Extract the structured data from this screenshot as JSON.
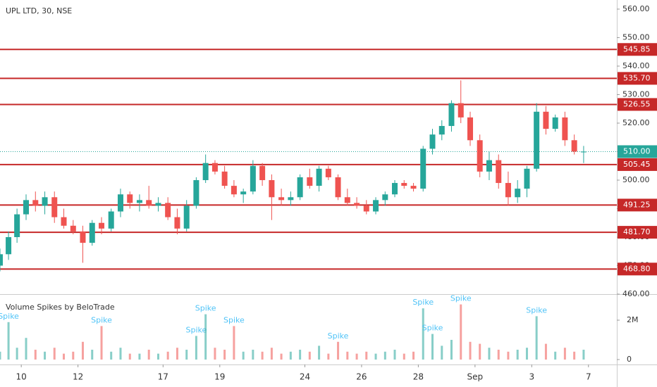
{
  "chart_data": {
    "type": "candlestick",
    "title": "UPL LTD, 30, NSE",
    "up_color": "#26a69a",
    "down_color": "#ef5350",
    "x": [
      -0.75,
      -0.45,
      -0.15,
      0.17,
      0.5,
      0.83,
      1.17,
      1.5,
      1.83,
      2.17,
      2.5,
      2.83,
      3.17,
      3.5,
      3.83,
      4.17,
      4.5,
      4.83,
      5.17,
      5.5,
      5.83,
      6.17,
      6.5,
      6.83,
      7.17,
      7.5,
      7.83,
      8.17,
      8.5,
      8.83,
      9.17,
      9.5,
      9.83,
      10.17,
      10.5,
      10.83,
      11.17,
      11.5,
      11.83,
      12.17,
      12.5,
      12.83,
      13.17,
      13.5,
      13.83,
      14.17,
      14.5,
      14.83,
      15.17,
      15.5,
      15.83,
      16.17,
      16.5,
      16.83,
      17.17,
      17.5,
      17.83,
      18.17,
      18.5,
      18.83,
      19.17,
      19.5,
      19.83
    ],
    "open": [
      470,
      474,
      480,
      488,
      493,
      491,
      494,
      487,
      484,
      482,
      478,
      485,
      483,
      489,
      495,
      492,
      493,
      491,
      492,
      487,
      483,
      491,
      500,
      506,
      503,
      498,
      495,
      496,
      505,
      500,
      494,
      493,
      494,
      501,
      498,
      504,
      501,
      494,
      492,
      491,
      489,
      493,
      495,
      499,
      498,
      497,
      511,
      516,
      519,
      527,
      522,
      514,
      503,
      507,
      499,
      494,
      497,
      504,
      524,
      518,
      522,
      514,
      510
    ],
    "high": [
      476,
      482,
      490,
      495,
      496,
      496,
      496,
      490,
      486,
      484,
      486,
      487,
      490,
      497,
      496,
      495,
      498,
      494,
      494,
      490,
      493,
      501,
      509,
      507,
      505,
      500,
      497,
      507,
      506,
      502,
      497,
      496,
      502,
      504,
      505,
      505,
      502,
      497,
      494,
      493,
      494,
      496,
      500,
      500,
      499,
      512,
      518,
      521,
      528,
      535,
      524,
      516,
      510,
      509,
      503,
      500,
      505,
      527,
      526,
      523,
      524,
      516,
      512
    ],
    "low": [
      468,
      472,
      478,
      486,
      489,
      488,
      485,
      483,
      481,
      471,
      477,
      481,
      482,
      487,
      490,
      489,
      490,
      489,
      486,
      481,
      482,
      490,
      499,
      502,
      497,
      494,
      492,
      495,
      498,
      486,
      491,
      491,
      493,
      497,
      496,
      500,
      493,
      491,
      490,
      488,
      488,
      491,
      494,
      497,
      496,
      496,
      509,
      514,
      517,
      520,
      512,
      501,
      500,
      497,
      491,
      492,
      494,
      503,
      516,
      517,
      512,
      509,
      506
    ],
    "close": [
      474,
      480,
      488,
      493,
      491,
      494,
      487,
      484,
      482,
      478,
      485,
      483,
      489,
      495,
      492,
      493,
      491,
      492,
      487,
      483,
      491,
      500,
      506,
      503,
      498,
      495,
      496,
      505,
      500,
      494,
      493,
      494,
      501,
      498,
      504,
      501,
      494,
      492,
      491,
      489,
      493,
      495,
      499,
      498,
      497,
      511,
      516,
      519,
      527,
      522,
      514,
      503,
      507,
      499,
      494,
      497,
      504,
      524,
      518,
      522,
      514,
      510,
      510
    ],
    "xlim": [
      -0.75,
      21
    ],
    "xticks": [
      {
        "value": 0,
        "label": "10"
      },
      {
        "value": 2,
        "label": "12"
      },
      {
        "value": 5,
        "label": "17"
      },
      {
        "value": 7,
        "label": "19"
      },
      {
        "value": 10,
        "label": "24"
      },
      {
        "value": 12,
        "label": "26"
      },
      {
        "value": 14,
        "label": "28"
      },
      {
        "value": 16,
        "label": "Sep"
      },
      {
        "value": 18,
        "label": "3"
      },
      {
        "value": 20,
        "label": "7"
      }
    ],
    "ylim": [
      460,
      563.2
    ],
    "yticks": [
      {
        "value": 460,
        "label": "460.00"
      },
      {
        "value": 470,
        "label": "470.00"
      },
      {
        "value": 480,
        "label": "480.00"
      },
      {
        "value": 490,
        "label": "490.00"
      },
      {
        "value": 500,
        "label": "500.00"
      },
      {
        "value": 510,
        "label": "510.00"
      },
      {
        "value": 520,
        "label": "520.00"
      },
      {
        "value": 530,
        "label": "530.00"
      },
      {
        "value": 540,
        "label": "540.00"
      },
      {
        "value": 550,
        "label": "550.00"
      },
      {
        "value": 560,
        "label": "560.00"
      }
    ],
    "level_color": "#c62828",
    "levels": [
      545.85,
      {
        "value": 535.7,
        "label": "535.70"
      },
      526.55,
      505.45,
      491.25,
      {
        "value": 481.7,
        "label": "481.70"
      },
      {
        "value": 468.8,
        "label": "468.80"
      }
    ],
    "last_price": {
      "value": 510,
      "label": "510.00"
    },
    "volume": {
      "title": "Volume Spikes by BeloTrade",
      "label_color": "#4fc3f7",
      "values": [
        0.4,
        1.9,
        0.6,
        1.1,
        0.5,
        0.4,
        0.6,
        0.3,
        0.4,
        0.9,
        0.5,
        1.7,
        0.4,
        0.6,
        0.3,
        0.3,
        0.5,
        0.3,
        0.4,
        0.6,
        0.5,
        1.2,
        2.3,
        0.6,
        0.5,
        1.7,
        0.4,
        0.5,
        0.4,
        0.6,
        0.3,
        0.4,
        0.5,
        0.4,
        0.7,
        0.3,
        0.9,
        0.4,
        0.3,
        0.4,
        0.3,
        0.4,
        0.5,
        0.3,
        0.4,
        2.6,
        1.3,
        0.7,
        1.0,
        2.8,
        0.9,
        0.8,
        0.6,
        0.5,
        0.4,
        0.5,
        0.6,
        2.2,
        0.8,
        0.4,
        0.6,
        0.4,
        0.5
      ],
      "labels": [
        null,
        "Spike",
        null,
        null,
        null,
        null,
        null,
        null,
        null,
        null,
        null,
        "Spike",
        null,
        null,
        null,
        null,
        null,
        null,
        null,
        null,
        null,
        "Spike",
        "Spike",
        null,
        null,
        "Spike",
        null,
        null,
        null,
        null,
        null,
        null,
        null,
        null,
        null,
        null,
        "Spike",
        null,
        null,
        null,
        null,
        null,
        null,
        null,
        null,
        "Spike",
        "Spike",
        null,
        null,
        "Spike",
        null,
        null,
        null,
        null,
        null,
        null,
        null,
        "Spike",
        null,
        null,
        null,
        null,
        null
      ],
      "ylim": [
        0,
        3.3
      ],
      "yticks": [
        0,
        {
          "value": 2,
          "label": "2M"
        }
      ]
    }
  }
}
